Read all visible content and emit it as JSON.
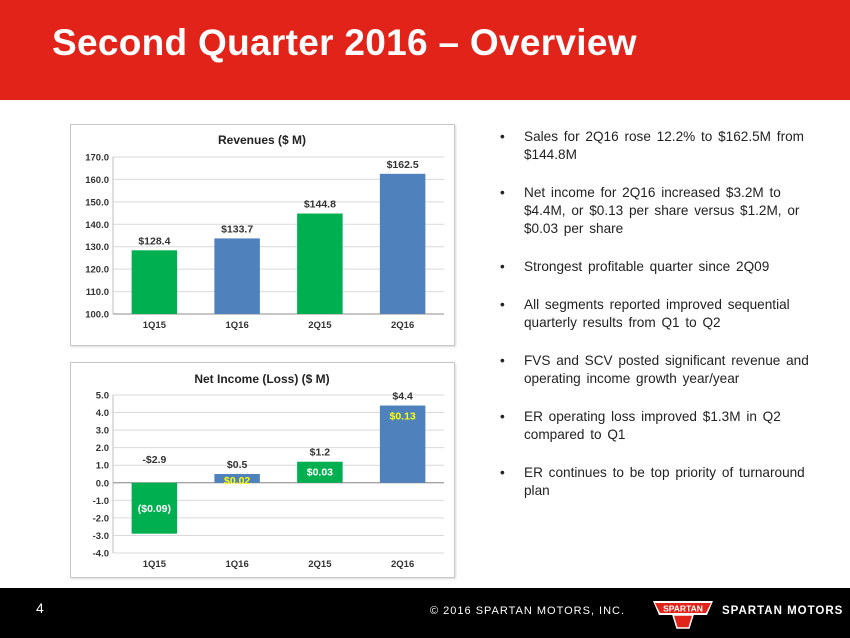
{
  "header": {
    "title": "Second Quarter 2016 – Overview",
    "color": "#e2231a"
  },
  "chart_data": [
    {
      "type": "bar",
      "title": "Revenues ($ M)",
      "categories": [
        "1Q15",
        "1Q16",
        "2Q15",
        "2Q16"
      ],
      "values": [
        128.4,
        133.7,
        144.8,
        162.5
      ],
      "value_labels": [
        "$128.4",
        "$133.7",
        "$144.8",
        "$162.5"
      ],
      "bar_colors": [
        "#00b050",
        "#4f81bd",
        "#00b050",
        "#4f81bd"
      ],
      "ylim": [
        100,
        170
      ],
      "yticks": [
        "100.0",
        "110.0",
        "120.0",
        "130.0",
        "140.0",
        "150.0",
        "160.0",
        "170.0"
      ],
      "grid": true,
      "xlabel": "",
      "ylabel": ""
    },
    {
      "type": "bar",
      "title": "Net Income (Loss) ($ M)",
      "categories": [
        "1Q15",
        "1Q16",
        "2Q15",
        "2Q16"
      ],
      "values": [
        -2.9,
        0.5,
        1.2,
        4.4
      ],
      "value_labels": [
        "-$2.9",
        "$0.5",
        "$1.2",
        "$4.4"
      ],
      "eps_labels": [
        "($0.09)",
        "$0.02",
        "$0.03",
        "$0.13"
      ],
      "eps_label_colors": [
        "#ffffff",
        "#ffff00",
        "#ffffff",
        "#ffff00"
      ],
      "bar_colors": [
        "#00b050",
        "#4f81bd",
        "#00b050",
        "#4f81bd"
      ],
      "ylim": [
        -4,
        5
      ],
      "yticks": [
        "-4.0",
        "-3.0",
        "-2.0",
        "-1.0",
        "0.0",
        "1.0",
        "2.0",
        "3.0",
        "4.0",
        "5.0"
      ],
      "grid": true,
      "xlabel": "",
      "ylabel": ""
    }
  ],
  "bullets": {
    "marker": "•",
    "items": [
      "Sales for 2Q16 rose 12.2% to $162.5M from $144.8M",
      "Net income for 2Q16 increased $3.2M to $4.4M, or $0.13 per share versus $1.2M, or $0.03 per share",
      "Strongest profitable quarter since 2Q09",
      "All segments reported improved sequential quarterly results from Q1 to Q2",
      "FVS and SCV posted significant revenue and operating income growth year/year",
      "ER operating loss improved $1.3M in Q2 compared to Q1",
      "ER continues to be top priority of turnaround plan"
    ]
  },
  "footer": {
    "page_number": "4",
    "copyright": "© 2016 SPARTAN MOTORS, INC.",
    "logo_text": "SPARTAN",
    "brand": "SPARTAN MOTORS"
  }
}
